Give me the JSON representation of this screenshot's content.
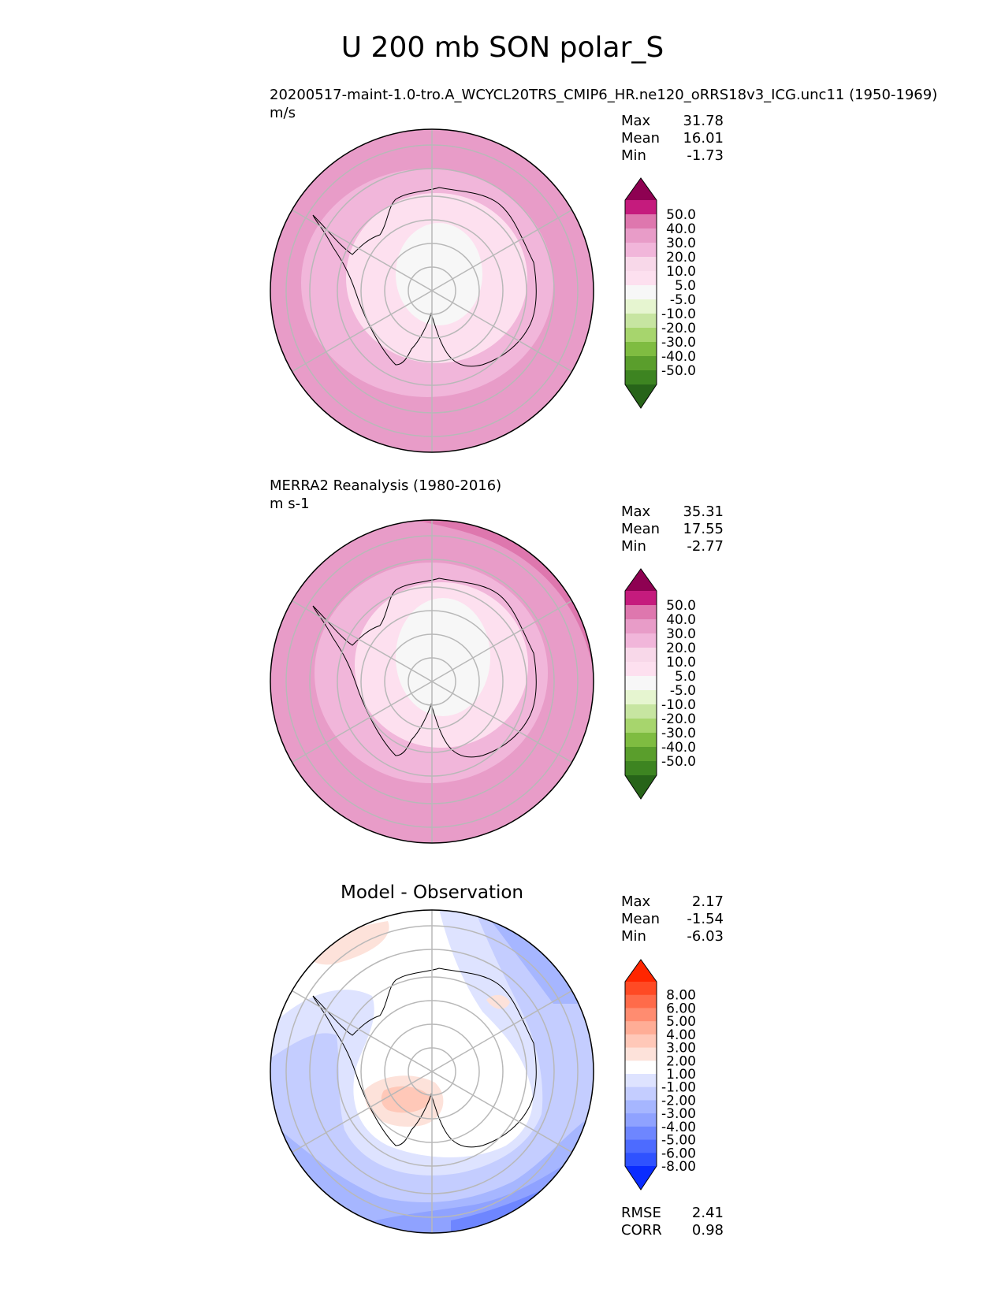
{
  "title": "U 200 mb SON polar_S",
  "panels": [
    {
      "id": "model",
      "caption": "20200517-maint-1.0-tro.A_WCYCL20TRS_CMIP6_HR.ne120_oRRS18v3_ICG.unc11 (1950-1969)",
      "units": "m/s",
      "stats": [
        {
          "label": "Max",
          "value": "31.78"
        },
        {
          "label": "Mean",
          "value": "16.01"
        },
        {
          "label": "Min",
          "value": "-1.73"
        }
      ],
      "colorbar": {
        "ticks": [
          "50.0",
          "40.0",
          "30.0",
          "20.0",
          "10.0",
          "5.0",
          "-5.0",
          "-10.0",
          "-20.0",
          "-30.0",
          "-40.0",
          "-50.0"
        ],
        "colors_top_to_bottom": [
          "#8e0152",
          "#c51b7d",
          "#de77ae",
          "#e89cc8",
          "#f1b6da",
          "#f8d8e9",
          "#fde0ef",
          "#f7f7f7",
          "#e6f5d0",
          "#c7e5a1",
          "#a7d56d",
          "#7fbc41",
          "#5a9e2c",
          "#3d8421",
          "#276419"
        ]
      }
    },
    {
      "id": "obs",
      "caption": "MERRA2 Reanalysis (1980-2016)",
      "units": "m s-1",
      "stats": [
        {
          "label": "Max",
          "value": "35.31"
        },
        {
          "label": "Mean",
          "value": "17.55"
        },
        {
          "label": "Min",
          "value": "-2.77"
        }
      ],
      "colorbar": {
        "ticks": [
          "50.0",
          "40.0",
          "30.0",
          "20.0",
          "10.0",
          "5.0",
          "-5.0",
          "-10.0",
          "-20.0",
          "-30.0",
          "-40.0",
          "-50.0"
        ],
        "colors_top_to_bottom": [
          "#8e0152",
          "#c51b7d",
          "#de77ae",
          "#e89cc8",
          "#f1b6da",
          "#f8d8e9",
          "#fde0ef",
          "#f7f7f7",
          "#e6f5d0",
          "#c7e5a1",
          "#a7d56d",
          "#7fbc41",
          "#5a9e2c",
          "#3d8421",
          "#276419"
        ]
      }
    },
    {
      "id": "diff",
      "panel_title": "Model - Observation",
      "stats": [
        {
          "label": "Max",
          "value": "2.17"
        },
        {
          "label": "Mean",
          "value": "-1.54"
        },
        {
          "label": "Min",
          "value": "-6.03"
        }
      ],
      "extra_stats": [
        {
          "label": "RMSE",
          "value": "2.41"
        },
        {
          "label": "CORR",
          "value": "0.98"
        }
      ],
      "colorbar": {
        "ticks": [
          "8.00",
          "6.00",
          "5.00",
          "4.00",
          "3.00",
          "2.00",
          "1.00",
          "-1.00",
          "-2.00",
          "-3.00",
          "-4.00",
          "-5.00",
          "-6.00",
          "-8.00"
        ],
        "colors_top_to_bottom": [
          "#ff2600",
          "#ff4a24",
          "#ff6b4a",
          "#ff8c70",
          "#ffad96",
          "#ffc8b8",
          "#fde2da",
          "#ffffff",
          "#dee3ff",
          "#c4cdff",
          "#a6b6ff",
          "#8fa2ff",
          "#6e86ff",
          "#4d6bff",
          "#2f52ff",
          "#0a2cff"
        ]
      }
    }
  ],
  "chart_data": [
    {
      "type": "heatmap",
      "title": "20200517-maint-1.0-tro.A_WCYCL20TRS_CMIP6_HR.ne120_oRRS18v3_ICG.unc11 (1950-1969)",
      "projection": "south polar stereographic",
      "variable": "U 200 mb SON",
      "units": "m/s",
      "levels": [
        -50,
        -40,
        -30,
        -20,
        -10,
        -5,
        5,
        10,
        20,
        30,
        40,
        50
      ],
      "max": 31.78,
      "mean": 16.01,
      "min": -1.73
    },
    {
      "type": "heatmap",
      "title": "MERRA2 Reanalysis (1980-2016)",
      "projection": "south polar stereographic",
      "variable": "U 200 mb SON",
      "units": "m s-1",
      "levels": [
        -50,
        -40,
        -30,
        -20,
        -10,
        -5,
        5,
        10,
        20,
        30,
        40,
        50
      ],
      "max": 35.31,
      "mean": 17.55,
      "min": -2.77
    },
    {
      "type": "heatmap",
      "title": "Model - Observation",
      "projection": "south polar stereographic",
      "variable": "U 200 mb SON difference",
      "levels": [
        -8,
        -6,
        -5,
        -4,
        -3,
        -2,
        -1,
        1,
        2,
        3,
        4,
        5,
        6,
        8
      ],
      "max": 2.17,
      "mean": -1.54,
      "min": -6.03,
      "rmse": 2.41,
      "corr": 0.98
    }
  ]
}
